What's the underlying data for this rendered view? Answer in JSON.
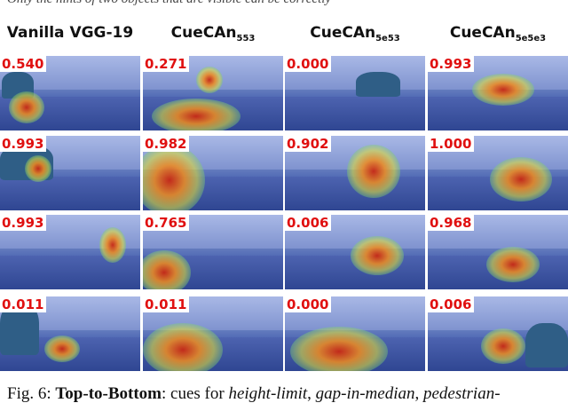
{
  "top_strip_text": "Only the hints of two objects that are visible can be correctly",
  "columns": [
    {
      "label": "Vanilla VGG-19",
      "sub": ""
    },
    {
      "label": "CueCAn",
      "sub": "553"
    },
    {
      "label": "CueCAn",
      "sub": "5e53"
    },
    {
      "label": "CueCAn",
      "sub": "5e5e3"
    }
  ],
  "scores": [
    [
      "0.540",
      "0.271",
      "0.000",
      "0.993"
    ],
    [
      "0.993",
      "0.982",
      "0.902",
      "1.000"
    ],
    [
      "0.993",
      "0.765",
      "0.006",
      "0.968"
    ],
    [
      "0.011",
      "0.011",
      "0.000",
      "0.006"
    ]
  ],
  "caption": {
    "prefix": "Fig. 6: ",
    "lead": "Top-to-Bottom",
    "mid": ": cues for ",
    "i1": "height-limit",
    "s1": ", ",
    "i2": "gap-in-median",
    "s2": ", ",
    "i3": "pedestrian-"
  },
  "colors": {
    "score_text": "#e01010",
    "score_bg": "#ffffff"
  }
}
